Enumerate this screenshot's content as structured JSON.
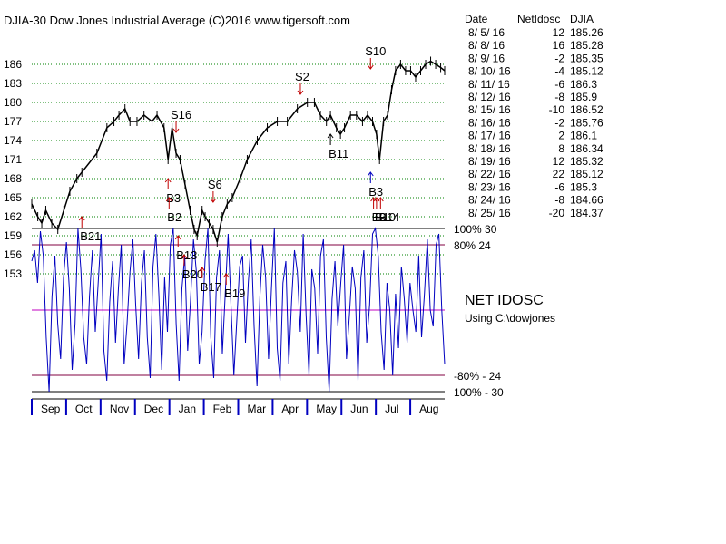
{
  "chart_data": {
    "type": "line",
    "title": "DJIA-30  Dow Jones Industrial Average   (C)2016 www.tigersoft.com",
    "price_axis": {
      "ticks": [
        186,
        183,
        180,
        177,
        174,
        171,
        168,
        165,
        162,
        159,
        156,
        153
      ]
    },
    "months": [
      "Sep",
      "Oct",
      "Nov",
      "Dec",
      "Jan",
      "Feb",
      "Mar",
      "Apr",
      "May",
      "Jun",
      "Jul",
      "Aug"
    ],
    "price_series": [
      {
        "t": 0,
        "v": 164
      },
      {
        "t": 0.6,
        "v": 162
      },
      {
        "t": 1.0,
        "v": 161
      },
      {
        "t": 1.4,
        "v": 163
      },
      {
        "t": 2.0,
        "v": 161
      },
      {
        "t": 2.6,
        "v": 160
      },
      {
        "t": 3.2,
        "v": 163
      },
      {
        "t": 3.8,
        "v": 166
      },
      {
        "t": 4.5,
        "v": 168
      },
      {
        "t": 5.0,
        "v": 169
      },
      {
        "t": 6.5,
        "v": 172
      },
      {
        "t": 7.5,
        "v": 176
      },
      {
        "t": 8.2,
        "v": 177
      },
      {
        "t": 8.7,
        "v": 178
      },
      {
        "t": 9.3,
        "v": 179
      },
      {
        "t": 9.8,
        "v": 177
      },
      {
        "t": 10.5,
        "v": 177
      },
      {
        "t": 11.2,
        "v": 178
      },
      {
        "t": 12.0,
        "v": 177
      },
      {
        "t": 12.5,
        "v": 178
      },
      {
        "t": 13.2,
        "v": 176
      },
      {
        "t": 13.6,
        "v": 171
      },
      {
        "t": 14.0,
        "v": 176
      },
      {
        "t": 14.4,
        "v": 172
      },
      {
        "t": 14.8,
        "v": 171
      },
      {
        "t": 15.3,
        "v": 167
      },
      {
        "t": 15.8,
        "v": 163
      },
      {
        "t": 16.2,
        "v": 160
      },
      {
        "t": 16.5,
        "v": 159
      },
      {
        "t": 17.0,
        "v": 163
      },
      {
        "t": 17.3,
        "v": 162
      },
      {
        "t": 17.7,
        "v": 161
      },
      {
        "t": 18.1,
        "v": 160
      },
      {
        "t": 18.5,
        "v": 158
      },
      {
        "t": 19.0,
        "v": 162
      },
      {
        "t": 19.5,
        "v": 164
      },
      {
        "t": 20.0,
        "v": 165
      },
      {
        "t": 20.8,
        "v": 168
      },
      {
        "t": 21.5,
        "v": 171
      },
      {
        "t": 22.5,
        "v": 174
      },
      {
        "t": 23.5,
        "v": 176
      },
      {
        "t": 24.5,
        "v": 177
      },
      {
        "t": 25.5,
        "v": 177
      },
      {
        "t": 26.5,
        "v": 179
      },
      {
        "t": 27.5,
        "v": 180
      },
      {
        "t": 28.2,
        "v": 180
      },
      {
        "t": 28.8,
        "v": 178
      },
      {
        "t": 29.4,
        "v": 177
      },
      {
        "t": 29.8,
        "v": 178
      },
      {
        "t": 30.4,
        "v": 176
      },
      {
        "t": 30.8,
        "v": 175
      },
      {
        "t": 31.2,
        "v": 176
      },
      {
        "t": 31.8,
        "v": 178
      },
      {
        "t": 32.4,
        "v": 178
      },
      {
        "t": 33.0,
        "v": 177
      },
      {
        "t": 33.5,
        "v": 178
      },
      {
        "t": 34.0,
        "v": 177
      },
      {
        "t": 34.4,
        "v": 175
      },
      {
        "t": 34.7,
        "v": 171
      },
      {
        "t": 35.1,
        "v": 177
      },
      {
        "t": 35.5,
        "v": 178
      },
      {
        "t": 35.9,
        "v": 182
      },
      {
        "t": 36.3,
        "v": 185
      },
      {
        "t": 36.8,
        "v": 186
      },
      {
        "t": 37.3,
        "v": 185
      },
      {
        "t": 37.8,
        "v": 185
      },
      {
        "t": 38.3,
        "v": 184
      },
      {
        "t": 38.8,
        "v": 185
      },
      {
        "t": 39.3,
        "v": 186
      },
      {
        "t": 39.8,
        "v": 186.5
      },
      {
        "t": 40.3,
        "v": 186
      },
      {
        "t": 40.8,
        "v": 185.5
      },
      {
        "t": 41.2,
        "v": 185
      }
    ],
    "price_range": [
      153,
      187
    ],
    "oscillator": {
      "name": "NET IDOSC",
      "source": "Using C:\\dowjones",
      "range": [
        -30,
        30
      ],
      "levels": [
        {
          "value": 30,
          "label": "100% 30",
          "color": "#000000"
        },
        {
          "value": 24,
          "label": "80%  24",
          "color": "#800040"
        },
        {
          "value": 0,
          "label": "",
          "color": "#c000c0"
        },
        {
          "value": -24,
          "label": "-80% - 24",
          "color": "#800040"
        },
        {
          "value": -30,
          "label": "100%  - 30",
          "color": "#000000"
        }
      ],
      "values": [
        18,
        22,
        10,
        29,
        20,
        -10,
        -30,
        5,
        20,
        -5,
        -18,
        12,
        25,
        8,
        -22,
        -5,
        30,
        15,
        -10,
        -20,
        5,
        22,
        -8,
        10,
        28,
        -15,
        -26,
        3,
        18,
        -12,
        8,
        24,
        -20,
        -5,
        14,
        26,
        2,
        -18,
        10,
        22,
        -10,
        -25,
        16,
        28,
        6,
        -22,
        12,
        -8,
        24,
        30,
        -5,
        -26,
        8,
        20,
        -15,
        4,
        26,
        14,
        -20,
        -8,
        18,
        30,
        -10,
        -25,
        12,
        22,
        -16,
        6,
        28,
        2,
        -24,
        -4,
        16,
        20,
        -12,
        10,
        26,
        -6,
        -28,
        5,
        24,
        12,
        -18,
        8,
        30,
        -14,
        -26,
        10,
        18,
        -20,
        4,
        22,
        14,
        -8,
        28,
        -2,
        -24,
        15,
        8,
        -16,
        20,
        26,
        -10,
        -30,
        4,
        18,
        -6,
        10,
        24,
        -18,
        -2,
        16,
        8,
        -26,
        12,
        22,
        -12,
        2,
        28,
        30,
        20,
        -8,
        -22,
        10,
        0,
        -24,
        6,
        -14,
        16,
        4,
        -12,
        10,
        0,
        -8,
        20,
        -10,
        6,
        26,
        0,
        -6,
        24,
        28,
        0,
        -20
      ]
    },
    "signals": [
      {
        "label": "B21",
        "t": 5,
        "price": 162,
        "dir": "up",
        "color": "#c00000"
      },
      {
        "label": "S16",
        "t": 14.4,
        "price": 177,
        "dir": "down",
        "color": "#c00000"
      },
      {
        "label": "B3",
        "t": 13.6,
        "price": 168,
        "dir": "up",
        "color": "#c00000"
      },
      {
        "label": "B2",
        "t": 13.7,
        "price": 165,
        "dir": "up",
        "color": "#c00000"
      },
      {
        "label": "B13",
        "t": 14.6,
        "price": 159,
        "dir": "up",
        "color": "#c00000"
      },
      {
        "label": "S6",
        "t": 18.1,
        "price": 166,
        "dir": "down",
        "color": "#c00000"
      },
      {
        "label": "B20",
        "t": 15.2,
        "price": 156,
        "dir": "up",
        "color": "#c00000"
      },
      {
        "label": "B17",
        "t": 17.0,
        "price": 154,
        "dir": "up",
        "color": "#c00000"
      },
      {
        "label": "B19",
        "t": 19.4,
        "price": 153,
        "dir": "up",
        "color": "#c00000"
      },
      {
        "label": "S2",
        "t": 26.8,
        "price": 183,
        "dir": "down",
        "color": "#c00000"
      },
      {
        "label": "B11",
        "t": 29.8,
        "price": 175,
        "dir": "up",
        "color": "#000000"
      },
      {
        "label": "S10",
        "t": 33.8,
        "price": 187,
        "dir": "down",
        "color": "#c00000"
      },
      {
        "label": "B3",
        "t": 33.8,
        "price": 169,
        "dir": "up",
        "color": "#0000c0"
      },
      {
        "label": "B9",
        "t": 34.1,
        "price": 165,
        "dir": "up",
        "color": "#c00000"
      },
      {
        "label": "B10",
        "t": 34.4,
        "price": 165,
        "dir": "up",
        "color": "#c00000"
      },
      {
        "label": "B14",
        "t": 34.8,
        "price": 165,
        "dir": "up",
        "color": "#c00000"
      }
    ]
  },
  "table": {
    "headers": [
      "Date",
      "NetIdosc",
      "DJIA"
    ],
    "rows": [
      [
        "8/ 5/ 16",
        "12",
        "185.26"
      ],
      [
        "8/ 8/ 16",
        "16",
        "185.28"
      ],
      [
        "8/ 9/ 16",
        "-2",
        "185.35"
      ],
      [
        "8/ 10/ 16",
        "-4",
        "185.12"
      ],
      [
        "8/ 11/ 16",
        "-6",
        "186.3"
      ],
      [
        "8/ 12/ 16",
        "-8",
        "185.9"
      ],
      [
        "8/ 15/ 16",
        "-10",
        "186.52"
      ],
      [
        "8/ 16/ 16",
        "-2",
        "185.76"
      ],
      [
        "8/ 17/ 16",
        "2",
        "186.1"
      ],
      [
        "8/ 18/ 16",
        "8",
        "186.34"
      ],
      [
        "8/ 19/ 16",
        "12",
        "185.32"
      ],
      [
        "8/ 22/ 16",
        "22",
        "185.12"
      ],
      [
        "8/ 23/ 16",
        "-6",
        "185.3"
      ],
      [
        "8/ 24/ 16",
        "-8",
        "184.66"
      ],
      [
        "8/ 25/ 16",
        "-20",
        "184.37"
      ]
    ]
  },
  "colors": {
    "price": "#000000",
    "oscillator": "#0000c0",
    "grid": "#008000",
    "axis_ticks": "#0000c0",
    "signal_red": "#c00000",
    "signal_blue": "#0000c0"
  }
}
